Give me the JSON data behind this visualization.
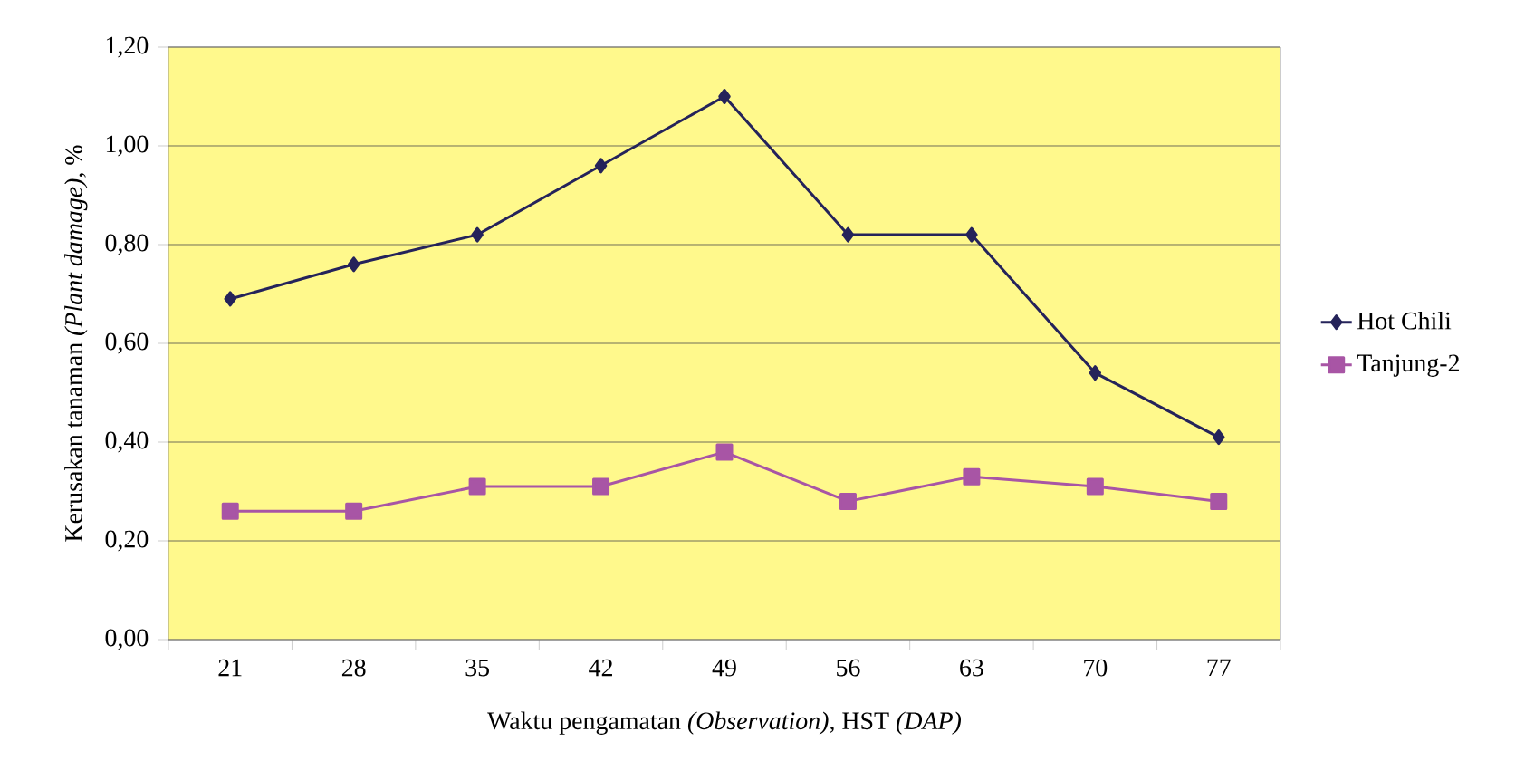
{
  "chart_data": {
    "type": "line",
    "xlabel": "Waktu pengamatan *(Observation),* HST *(DAP)*",
    "ylabel": "Kerusakan tanaman *(Plant damage)*, %",
    "categories": [
      "21",
      "28",
      "35",
      "42",
      "49",
      "56",
      "63",
      "70",
      "77"
    ],
    "series": [
      {
        "name": "Hot Chili",
        "color": "#25235a",
        "marker": "diamond",
        "values": [
          0.69,
          0.76,
          0.82,
          0.96,
          1.1,
          0.82,
          0.82,
          0.54,
          0.41
        ]
      },
      {
        "name": "Tanjung-2",
        "color": "#a855a5",
        "marker": "square",
        "values": [
          0.26,
          0.26,
          0.31,
          0.31,
          0.38,
          0.28,
          0.33,
          0.31,
          0.28
        ]
      }
    ],
    "ylim": [
      0,
      1.2
    ],
    "yticks": [
      {
        "value": 0,
        "label": "0,00"
      },
      {
        "value": 0.2,
        "label": "0,20"
      },
      {
        "value": 0.4,
        "label": "0,40"
      },
      {
        "value": 0.6,
        "label": "0,60"
      },
      {
        "value": 0.8,
        "label": "0,80"
      },
      {
        "value": 1.0,
        "label": "1,00"
      },
      {
        "value": 1.2,
        "label": "1,20"
      }
    ],
    "grid": "y",
    "legend": "right",
    "line_style": "solid"
  }
}
